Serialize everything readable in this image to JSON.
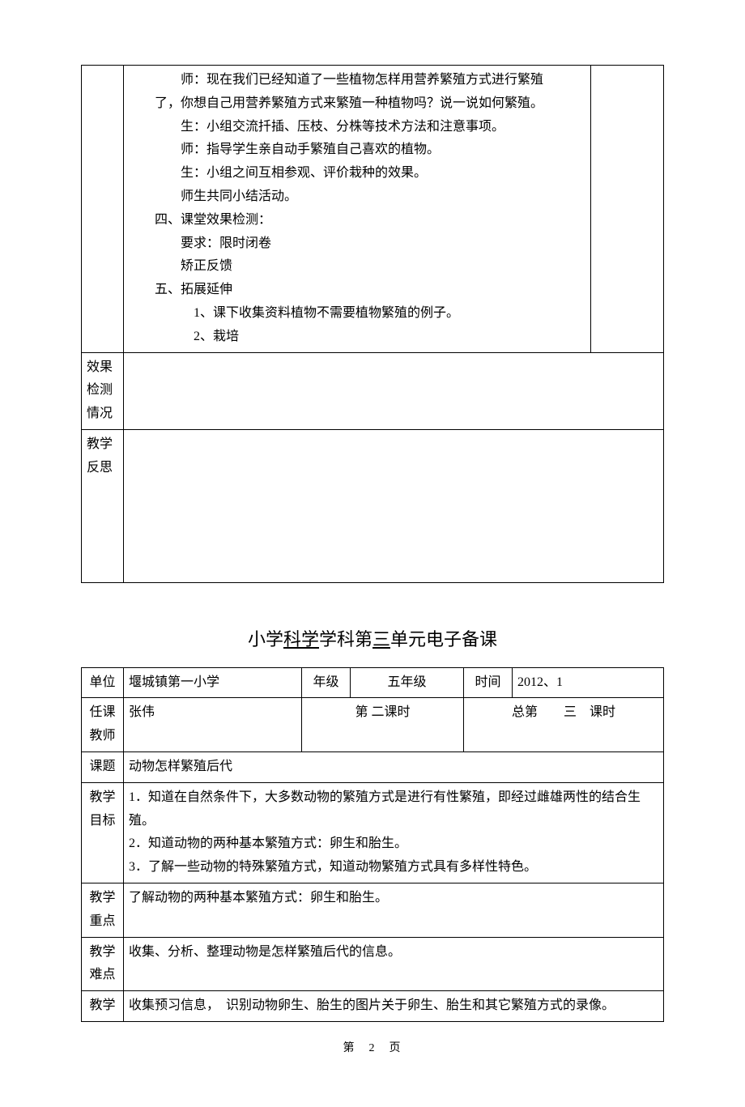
{
  "colors": {
    "text": "#000000",
    "background": "#ffffff",
    "border": "#000000"
  },
  "typography": {
    "body_font": "SimSun",
    "body_size_pt": 12,
    "line_height": 1.8,
    "title_size_pt": 16
  },
  "upper_table": {
    "content": {
      "lines": [
        {
          "cls": "indent1",
          "text": "师：现在我们已经知道了一些植物怎样用营养繁殖方式进行繁殖"
        },
        {
          "cls": "indent-h",
          "text": "了，你想自己用营养繁殖方式来繁殖一种植物吗？说一说如何繁殖。"
        },
        {
          "cls": "indent1",
          "text": "生：小组交流扦插、压枝、分株等技术方法和注意事项。"
        },
        {
          "cls": "indent1",
          "text": "师：指导学生亲自动手繁殖自己喜欢的植物。"
        },
        {
          "cls": "indent1",
          "text": "生：小组之间互相参观、评价栽种的效果。"
        },
        {
          "cls": "indent1",
          "text": "师生共同小结活动。"
        },
        {
          "cls": "indent-h",
          "text": "四、课堂效果检测："
        },
        {
          "cls": "indent1",
          "text": "要求：限时闭卷"
        },
        {
          "cls": "indent1",
          "text": "矫正反馈"
        },
        {
          "cls": "indent-h",
          "text": "五、拓展延伸"
        },
        {
          "cls": "indent2",
          "text": "1、课下收集资料植物不需要植物繁殖的例子。"
        },
        {
          "cls": "indent2",
          "text": "2、栽培"
        }
      ]
    },
    "row_effect_label": "效果检测情况",
    "row_reflect_label": "教学反思"
  },
  "title": {
    "prefix": "小学",
    "underline1": "科学",
    "mid": "学科第",
    "underline2": "三",
    "suffix": "单元电子备课"
  },
  "lower_table": {
    "r1": {
      "unit_label": "单位",
      "unit_value": "堰城镇第一小学",
      "grade_label": "年级",
      "grade_value": "五年级",
      "time_label": "时间",
      "time_value": "2012、1"
    },
    "r2": {
      "teacher_label": "任课教师",
      "teacher_value": "张伟",
      "lesson_no": "第 二课时",
      "total_no": "总第　　三　课时"
    },
    "r3": {
      "topic_label": "课题",
      "topic_value": "动物怎样繁殖后代"
    },
    "r4": {
      "goal_label": "教学目标",
      "goal_lines": [
        "1．知道在自然条件下，大多数动物的繁殖方式是进行有性繁殖，即经过雌雄两性的结合生殖。",
        "2．知道动物的两种基本繁殖方式：卵生和胎生。",
        "3．了解一些动物的特殊繁殖方式，知道动物繁殖方式具有多样性特色。"
      ]
    },
    "r5": {
      "keypoint_label": "教学重点",
      "keypoint_value": "了解动物的两种基本繁殖方式：卵生和胎生。"
    },
    "r6": {
      "difficulty_label": "教学难点",
      "difficulty_value": "收集、分析、整理动物是怎样繁殖后代的信息。"
    },
    "r7": {
      "prep_label": "教学",
      "prep_value": "收集预习信息，　识别动物卵生、胎生的图片关于卵生、胎生和其它繁殖方式的录像。"
    }
  },
  "footer": {
    "text": "第　2　页"
  }
}
